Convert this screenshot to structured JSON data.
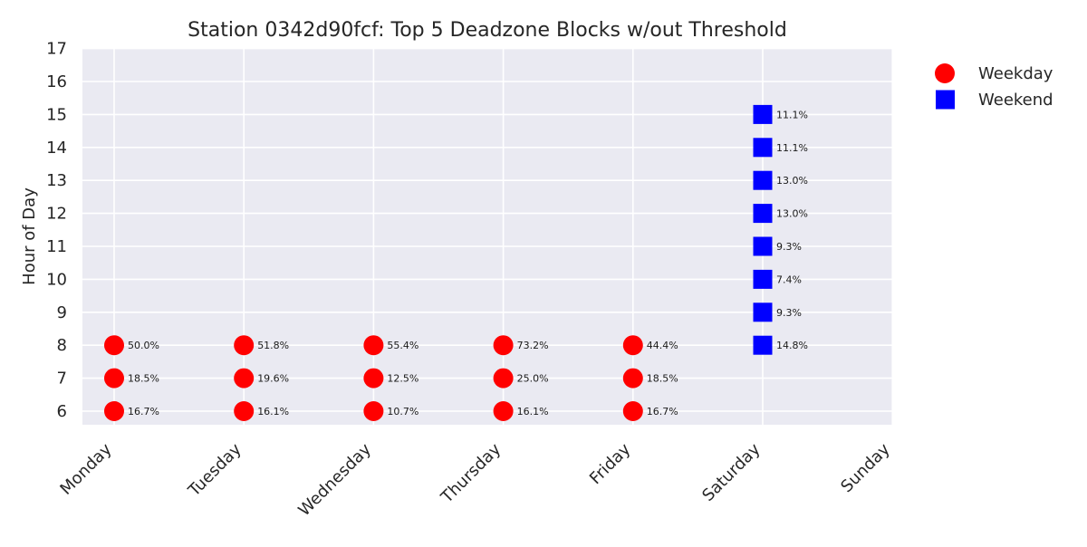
{
  "chart_data": {
    "type": "scatter",
    "title": "Station 0342d90fcf: Top 5 Deadzone Blocks w/out Threshold",
    "xlabel": "",
    "ylabel": "Hour of Day",
    "categories": [
      "Monday",
      "Tuesday",
      "Wednesday",
      "Thursday",
      "Friday",
      "Saturday",
      "Sunday"
    ],
    "yticks": [
      "6",
      "7",
      "8",
      "9",
      "10",
      "11",
      "12",
      "13",
      "14",
      "15",
      "16",
      "17"
    ],
    "ylim": [
      5.6,
      17
    ],
    "grid": true,
    "legend_position": "outside-top-right",
    "series": [
      {
        "name": "Weekday",
        "marker": "circle",
        "color": "#ff0000",
        "points": [
          {
            "day": "Monday",
            "hour": 8,
            "label": "50.0%"
          },
          {
            "day": "Monday",
            "hour": 7,
            "label": "18.5%"
          },
          {
            "day": "Monday",
            "hour": 6,
            "label": "16.7%"
          },
          {
            "day": "Tuesday",
            "hour": 8,
            "label": "51.8%"
          },
          {
            "day": "Tuesday",
            "hour": 7,
            "label": "19.6%"
          },
          {
            "day": "Tuesday",
            "hour": 6,
            "label": "16.1%"
          },
          {
            "day": "Wednesday",
            "hour": 8,
            "label": "55.4%"
          },
          {
            "day": "Wednesday",
            "hour": 7,
            "label": "12.5%"
          },
          {
            "day": "Wednesday",
            "hour": 6,
            "label": "10.7%"
          },
          {
            "day": "Thursday",
            "hour": 8,
            "label": "73.2%"
          },
          {
            "day": "Thursday",
            "hour": 7,
            "label": "25.0%"
          },
          {
            "day": "Thursday",
            "hour": 6,
            "label": "16.1%"
          },
          {
            "day": "Friday",
            "hour": 8,
            "label": "44.4%"
          },
          {
            "day": "Friday",
            "hour": 7,
            "label": "18.5%"
          },
          {
            "day": "Friday",
            "hour": 6,
            "label": "16.7%"
          }
        ]
      },
      {
        "name": "Weekend",
        "marker": "square",
        "color": "#0000ff",
        "points": [
          {
            "day": "Saturday",
            "hour": 15,
            "label": "11.1%"
          },
          {
            "day": "Saturday",
            "hour": 14,
            "label": "11.1%"
          },
          {
            "day": "Saturday",
            "hour": 13,
            "label": "13.0%"
          },
          {
            "day": "Saturday",
            "hour": 12,
            "label": "13.0%"
          },
          {
            "day": "Saturday",
            "hour": 11,
            "label": "9.3%"
          },
          {
            "day": "Saturday",
            "hour": 10,
            "label": "7.4%"
          },
          {
            "day": "Saturday",
            "hour": 9,
            "label": "9.3%"
          },
          {
            "day": "Saturday",
            "hour": 8,
            "label": "14.8%"
          }
        ]
      }
    ]
  }
}
